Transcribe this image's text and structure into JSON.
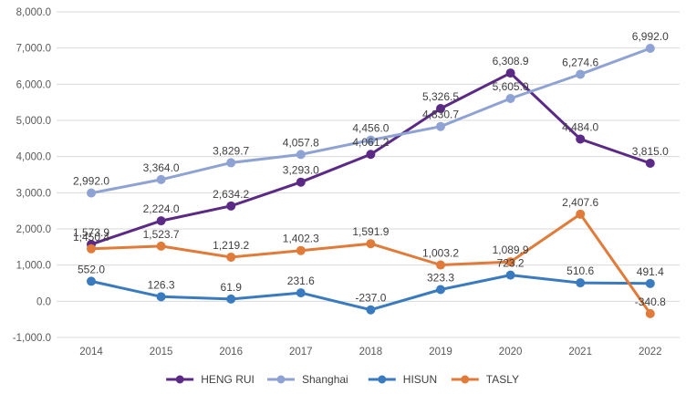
{
  "chart_data": {
    "type": "line",
    "title": "",
    "xlabel": "",
    "ylabel": "",
    "categories": [
      "2014",
      "2015",
      "2016",
      "2017",
      "2018",
      "2019",
      "2020",
      "2021",
      "2022"
    ],
    "ylim": [
      -1000,
      8000
    ],
    "yticks": [
      -1000,
      0,
      1000,
      2000,
      3000,
      4000,
      5000,
      6000,
      7000,
      8000
    ],
    "ytick_labels": [
      "-1,000.0",
      "0.0",
      "1,000.0",
      "2,000.0",
      "3,000.0",
      "4,000.0",
      "5,000.0",
      "6,000.0",
      "7,000.0",
      "8,000.0"
    ],
    "grid": true,
    "legend_position": "bottom",
    "series": [
      {
        "name": "HENG RUI",
        "color": "#5b2a86",
        "values": [
          1573.9,
          2224.0,
          2634.2,
          3293.0,
          4061.2,
          5326.5,
          6308.9,
          4484.0,
          3815.0
        ],
        "labels": [
          "1,573.9",
          "2,224.0",
          "2,634.2",
          "3,293.0",
          "4,061.2",
          "5,326.5",
          "6,308.9",
          "4,484.0",
          "3,815.0"
        ]
      },
      {
        "name": "Shanghai",
        "color": "#8ea2d4",
        "values": [
          2992.0,
          3364.0,
          3829.7,
          4057.8,
          4456.0,
          4830.7,
          5605.0,
          6274.6,
          6992.0
        ],
        "labels": [
          "2,992.0",
          "3,364.0",
          "3,829.7",
          "4,057.8",
          "4,456.0",
          "4,830.7",
          "5,605.0",
          "6,274.6",
          "6,992.0"
        ]
      },
      {
        "name": "HISUN",
        "color": "#3a7bbf",
        "values": [
          552.0,
          126.3,
          61.9,
          231.6,
          -237.0,
          323.3,
          723.2,
          510.6,
          491.4
        ],
        "labels": [
          "552.0",
          "126.3",
          "61.9",
          "231.6",
          "-237.0",
          "323.3",
          "723.2",
          "510.6",
          "491.4"
        ]
      },
      {
        "name": "TASLY",
        "color": "#e07b39",
        "values": [
          1450.4,
          1523.7,
          1219.2,
          1402.3,
          1591.9,
          1003.2,
          1089.9,
          2407.6,
          -340.8
        ],
        "labels": [
          "1,450.4",
          "1,523.7",
          "1,219.2",
          "1,402.3",
          "1,591.9",
          "1,003.2",
          "1,089.9",
          "2,407.6",
          "-340.8"
        ]
      }
    ]
  }
}
